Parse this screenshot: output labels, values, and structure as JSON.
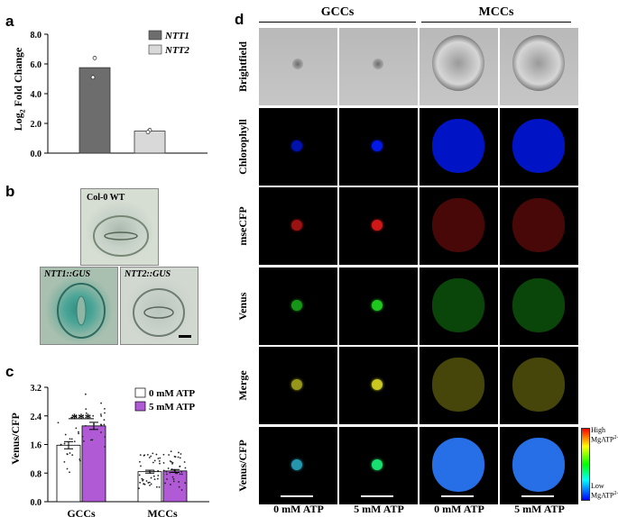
{
  "panel_a": {
    "label": "a",
    "ylabel_prefix": "Log",
    "ylabel_sub": "2",
    "ylabel_suffix": " Fold Change",
    "legend": [
      "NTT1",
      "NTT2"
    ],
    "colors": {
      "ntt1": "#6d6d6d",
      "ntt2": "#d9d9d9"
    }
  },
  "panel_b": {
    "label": "b",
    "wt_label": "Col-0 WT",
    "ntt1_label": "NTT1::GUS",
    "ntt2_label": "NTT2::GUS"
  },
  "panel_c": {
    "label": "c",
    "ylabel": "Venus/CFP",
    "legend": [
      "0 mM ATP",
      "5 mM ATP"
    ],
    "significance": "***",
    "colors": {
      "zero": "#ffffff",
      "five": "#b05ad6"
    }
  },
  "panel_d": {
    "label": "d",
    "group_headers": [
      "GCCs",
      "MCCs"
    ],
    "row_labels": [
      "Brightfield",
      "Chlorophyll",
      "mseCFP",
      "Venus",
      "Merge",
      "Venus/CFP"
    ],
    "column_labels": [
      "0 mM ATP",
      "5 mM ATP",
      "0 mM ATP",
      "5 mM ATP"
    ],
    "colorbar_high": "High",
    "colorbar_low": "Low",
    "colorbar_unit": "MgATP",
    "colorbar_unit_sup": "2-"
  },
  "chart_data": [
    {
      "type": "bar",
      "categories": [
        "NTT1",
        "NTT2"
      ],
      "values": [
        5.75,
        1.48
      ],
      "points": [
        [
          6.4,
          5.1
        ],
        [
          1.55,
          1.42
        ]
      ],
      "ylim": [
        0,
        8
      ],
      "yticks": [
        "0.0",
        "2.0",
        "4.0",
        "6.0",
        "8.0"
      ]
    },
    {
      "type": "bar",
      "categories": [
        "GCCs",
        "MCCs"
      ],
      "series": [
        {
          "name": "0 mM ATP",
          "values": [
            1.58,
            0.84
          ],
          "errors": [
            0.1,
            0.04
          ]
        },
        {
          "name": "5 mM ATP",
          "values": [
            2.12,
            0.86
          ],
          "errors": [
            0.1,
            0.04
          ]
        }
      ],
      "ylim": [
        0,
        3.2
      ],
      "yticks": [
        "0.0",
        "0.8",
        "1.6",
        "2.4",
        "3.2"
      ]
    }
  ]
}
